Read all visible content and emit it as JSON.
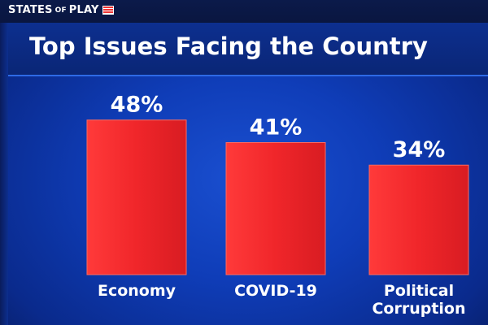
{
  "branding": {
    "logo_text_1": "STATES",
    "logo_text_2": "OF",
    "logo_text_3": "PLAY"
  },
  "chart_data": {
    "type": "bar",
    "title": "Top Issues Facing the Country",
    "categories": [
      [
        "Economy"
      ],
      [
        "COVID-19"
      ],
      [
        "Political",
        "Corruption"
      ]
    ],
    "values": [
      48,
      41,
      34
    ],
    "value_labels": [
      "48%",
      "41%",
      "34%"
    ],
    "unit": "%",
    "ylim": [
      0,
      55
    ],
    "grid": false,
    "legend": "none",
    "bar_color": "#f0262a",
    "bar_edge_color": "#ff6a5e"
  }
}
